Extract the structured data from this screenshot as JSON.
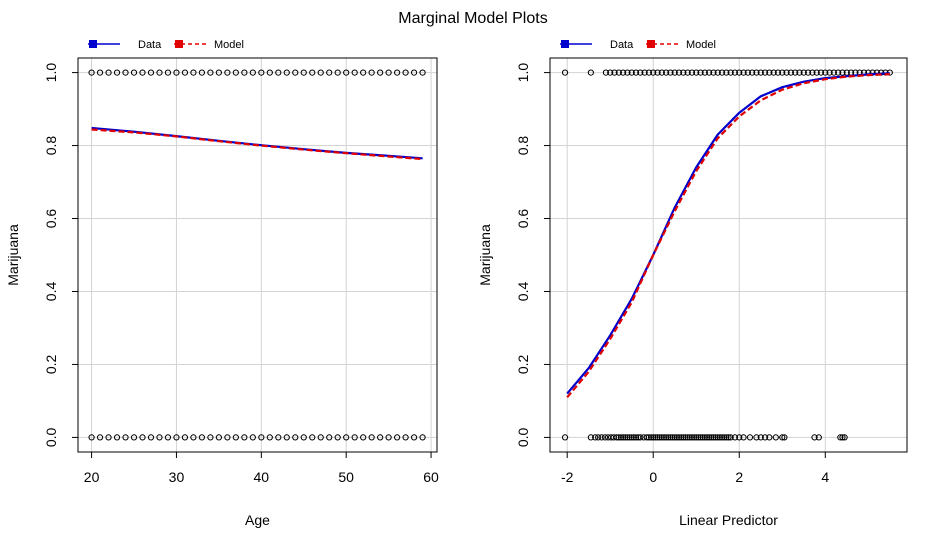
{
  "figure": {
    "title": "Marginal Model Plots"
  },
  "legend": {
    "data_label": "Data",
    "model_label": "Model",
    "data_color": "#0000CD",
    "model_color": "#E00000"
  },
  "chart_data": [
    {
      "type": "scatter",
      "xlabel": "Age",
      "ylabel": "Marijuana",
      "xlim": [
        18.4,
        60.7
      ],
      "ylim": [
        -0.04,
        1.04
      ],
      "xticks": [
        20,
        30,
        40,
        50,
        60
      ],
      "yticks": [
        0.0,
        0.2,
        0.4,
        0.6,
        0.8,
        1.0
      ],
      "grid": true,
      "legend": "top-left",
      "points_y0": [
        20,
        21,
        22,
        23,
        24,
        25,
        26,
        27,
        28,
        29,
        30,
        31,
        32,
        33,
        34,
        35,
        36,
        37,
        38,
        39,
        40,
        41,
        42,
        43,
        44,
        45,
        46,
        47,
        48,
        49,
        50,
        51,
        52,
        53,
        54,
        55,
        56,
        57,
        58,
        59
      ],
      "points_y1": [
        20,
        21,
        22,
        23,
        24,
        25,
        26,
        27,
        28,
        29,
        30,
        31,
        32,
        33,
        34,
        35,
        36,
        37,
        38,
        39,
        40,
        41,
        42,
        43,
        44,
        45,
        46,
        47,
        48,
        49,
        50,
        51,
        52,
        53,
        54,
        55,
        56,
        57,
        58,
        59
      ],
      "series": [
        {
          "name": "Data",
          "style": "solid",
          "color": "#0000CD",
          "x": [
            20,
            25,
            30,
            35,
            40,
            45,
            50,
            55,
            59
          ],
          "y": [
            0.848,
            0.838,
            0.826,
            0.813,
            0.801,
            0.79,
            0.78,
            0.772,
            0.765
          ]
        },
        {
          "name": "Model",
          "style": "dashed",
          "color": "#E00000",
          "x": [
            20,
            25,
            30,
            35,
            40,
            45,
            50,
            55,
            59
          ],
          "y": [
            0.844,
            0.836,
            0.825,
            0.812,
            0.8,
            0.789,
            0.779,
            0.77,
            0.763
          ]
        }
      ]
    },
    {
      "type": "scatter",
      "xlabel": "Linear Predictor",
      "ylabel": "Marijuana",
      "xlim": [
        -2.4,
        5.9
      ],
      "ylim": [
        -0.04,
        1.04
      ],
      "xticks": [
        -2,
        0,
        2,
        4
      ],
      "yticks": [
        0.0,
        0.2,
        0.4,
        0.6,
        0.8,
        1.0
      ],
      "grid": true,
      "legend": "top-left",
      "points_y0": [
        -2.05,
        -1.45,
        -1.35,
        -1.28,
        -1.2,
        -1.12,
        -1.05,
        -0.98,
        -0.92,
        -0.85,
        -0.8,
        -0.75,
        -0.7,
        -0.65,
        -0.6,
        -0.55,
        -0.5,
        -0.45,
        -0.4,
        -0.35,
        -0.3,
        -0.22,
        -0.15,
        -0.1,
        -0.05,
        0.0,
        0.05,
        0.1,
        0.15,
        0.2,
        0.25,
        0.3,
        0.35,
        0.4,
        0.45,
        0.5,
        0.55,
        0.6,
        0.65,
        0.7,
        0.75,
        0.8,
        0.85,
        0.9,
        0.95,
        1.0,
        1.05,
        1.1,
        1.15,
        1.2,
        1.25,
        1.3,
        1.35,
        1.4,
        1.45,
        1.5,
        1.55,
        1.6,
        1.65,
        1.7,
        1.75,
        1.8,
        1.9,
        2.0,
        2.1,
        2.25,
        2.4,
        2.5,
        2.6,
        2.7,
        2.85,
        3.0,
        3.05,
        3.75,
        3.85,
        4.35,
        4.4,
        4.45
      ],
      "points_y1": [
        -2.05,
        -1.45,
        -1.1,
        -1.0,
        -0.9,
        -0.8,
        -0.7,
        -0.6,
        -0.5,
        -0.4,
        -0.3,
        -0.2,
        -0.1,
        0.0,
        0.1,
        0.2,
        0.3,
        0.4,
        0.5,
        0.6,
        0.7,
        0.8,
        0.9,
        1.0,
        1.1,
        1.2,
        1.3,
        1.4,
        1.5,
        1.6,
        1.7,
        1.8,
        1.9,
        2.0,
        2.1,
        2.2,
        2.3,
        2.4,
        2.5,
        2.6,
        2.7,
        2.8,
        2.9,
        3.0,
        3.1,
        3.2,
        3.3,
        3.4,
        3.5,
        3.6,
        3.7,
        3.8,
        3.9,
        4.0,
        4.1,
        4.2,
        4.3,
        4.4,
        4.5,
        4.6,
        4.7,
        4.8,
        4.9,
        5.0,
        5.1,
        5.2,
        5.3,
        5.4,
        5.5
      ],
      "series": [
        {
          "name": "Data",
          "style": "solid",
          "color": "#0000CD",
          "x": [
            -2.0,
            -1.5,
            -1.0,
            -0.5,
            0.0,
            0.5,
            1.0,
            1.5,
            2.0,
            2.5,
            3.0,
            3.5,
            4.0,
            4.5,
            5.0,
            5.5
          ],
          "y": [
            0.12,
            0.19,
            0.28,
            0.38,
            0.5,
            0.63,
            0.74,
            0.83,
            0.89,
            0.935,
            0.96,
            0.975,
            0.985,
            0.99,
            0.995,
            0.998
          ]
        },
        {
          "name": "Model",
          "style": "dashed",
          "color": "#E00000",
          "x": [
            -2.0,
            -1.5,
            -1.0,
            -0.5,
            0.0,
            0.5,
            1.0,
            1.5,
            2.0,
            2.5,
            3.0,
            3.5,
            4.0,
            4.5,
            5.0,
            5.5
          ],
          "y": [
            0.11,
            0.18,
            0.27,
            0.37,
            0.5,
            0.62,
            0.73,
            0.82,
            0.88,
            0.924,
            0.953,
            0.971,
            0.982,
            0.989,
            0.993,
            0.996
          ]
        }
      ]
    }
  ]
}
